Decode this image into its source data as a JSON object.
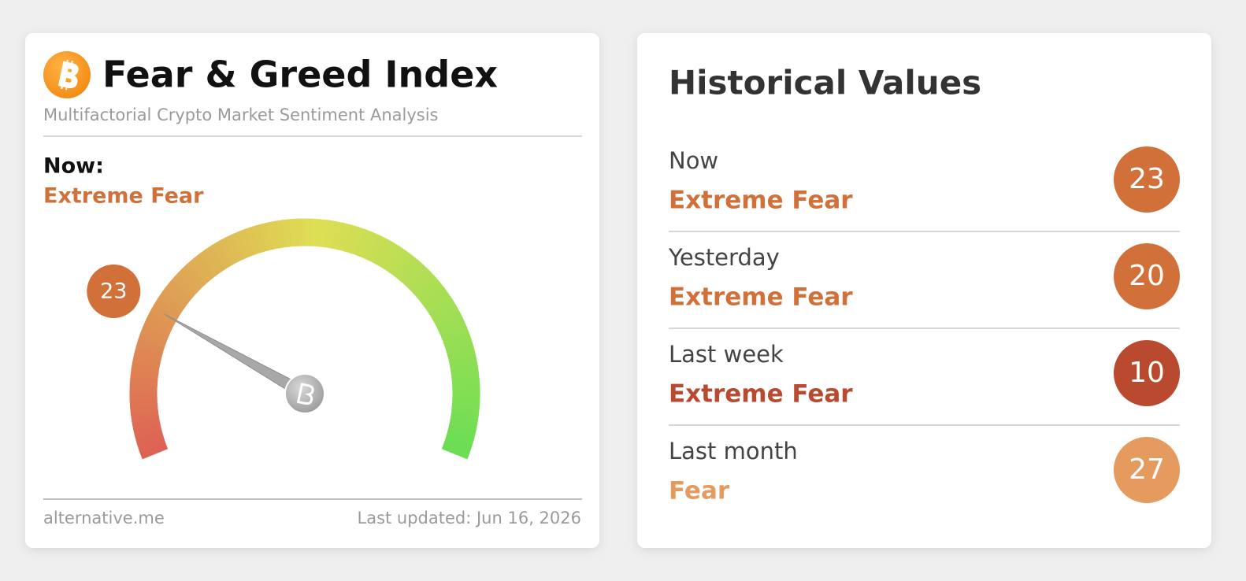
{
  "widget": {
    "title": "Fear & Greed Index",
    "subtitle": "Multifactorial Crypto Market Sentiment Analysis",
    "now_label": "Now:",
    "now_status": "Extreme Fear",
    "value": 23,
    "color": "#d2703a",
    "footer_source": "alternative.me",
    "footer_updated": "Last updated: Jun 16, 2026"
  },
  "history": {
    "title": "Historical Values",
    "rows": [
      {
        "label": "Now",
        "status": "Extreme Fear",
        "value": 23,
        "color": "#d2703a"
      },
      {
        "label": "Yesterday",
        "status": "Extreme Fear",
        "value": 20,
        "color": "#d2703a"
      },
      {
        "label": "Last week",
        "status": "Extreme Fear",
        "value": 10,
        "color": "#b94a2f"
      },
      {
        "label": "Last month",
        "status": "Fear",
        "value": 27,
        "color": "#e59a5e"
      }
    ]
  }
}
